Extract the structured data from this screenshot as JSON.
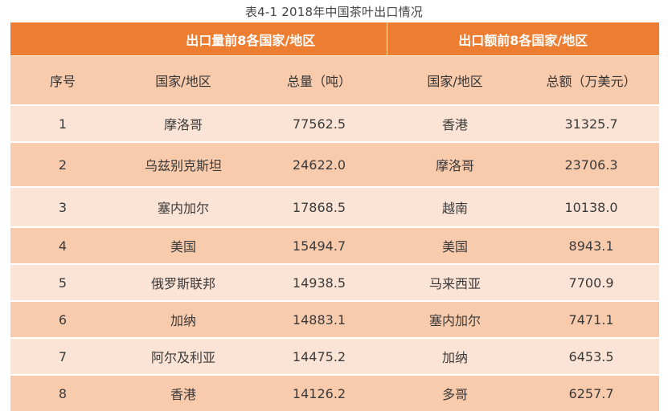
{
  "caption": "表4-1 2018年中国茶叶出口情况",
  "group_headers": {
    "volume": "出口量前8各国家/地区",
    "amount": "出口额前8各国家/地区"
  },
  "column_headers": {
    "index": "序号",
    "volume_country": "国家/地区",
    "volume_total": "总量（吨）",
    "amount_country": "国家/地区",
    "amount_total": "总额（万美元）"
  },
  "rows": [
    {
      "index": "1",
      "volume_country": "摩洛哥",
      "volume_total": "77562.5",
      "amount_country": "香港",
      "amount_total": "31325.7"
    },
    {
      "index": "2",
      "volume_country": "乌兹别克斯坦",
      "volume_total": "24622.0",
      "amount_country": "摩洛哥",
      "amount_total": "23706.3"
    },
    {
      "index": "3",
      "volume_country": "塞内加尔",
      "volume_total": "17868.5",
      "amount_country": "越南",
      "amount_total": "10138.0"
    },
    {
      "index": "4",
      "volume_country": "美国",
      "volume_total": "15494.7",
      "amount_country": "美国",
      "amount_total": "8943.1"
    },
    {
      "index": "5",
      "volume_country": "俄罗斯联邦",
      "volume_total": "14938.5",
      "amount_country": "马来西亚",
      "amount_total": "7700.9"
    },
    {
      "index": "6",
      "volume_country": "加纳",
      "volume_total": "14883.1",
      "amount_country": "塞内加尔",
      "amount_total": "7471.1"
    },
    {
      "index": "7",
      "volume_country": "阿尔及利亚",
      "volume_total": "14475.2",
      "amount_country": "加纳",
      "amount_total": "6453.5"
    },
    {
      "index": "8",
      "volume_country": "香港",
      "volume_total": "14126.2",
      "amount_country": "多哥",
      "amount_total": "6257.7"
    }
  ],
  "colors": {
    "header_orange": "#ed7d31",
    "row_light": "#fbe4d6",
    "row_dark": "#f8cbad"
  }
}
